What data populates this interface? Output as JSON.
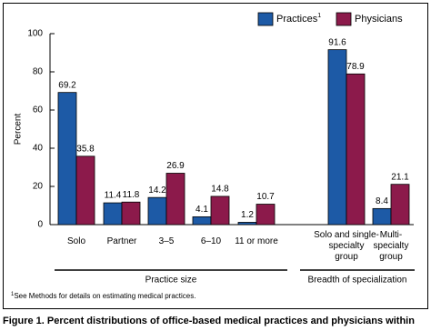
{
  "chart_data": {
    "type": "bar",
    "y_label": "Percent",
    "categories": [
      [
        "Solo"
      ],
      [
        "Partner"
      ],
      [
        "3–5"
      ],
      [
        "6–10"
      ],
      [
        "11 or more"
      ],
      [
        "Solo and single-",
        "specialty",
        "group"
      ],
      [
        "Multi-",
        "specialty",
        "group"
      ]
    ],
    "series": [
      {
        "name": "Practices",
        "legend_superscript": "1",
        "color": "#1d5aa6",
        "values": [
          69.2,
          11.4,
          14.2,
          4.1,
          1.2,
          91.6,
          8.4
        ]
      },
      {
        "name": "Physicians",
        "color": "#8c1a4b",
        "values": [
          35.8,
          11.8,
          26.9,
          14.8,
          10.7,
          78.9,
          21.1
        ]
      }
    ],
    "ylim": [
      0,
      100
    ],
    "yticks": [
      0,
      20,
      40,
      60,
      80,
      100
    ],
    "grid": false,
    "groups": [
      "Practice size",
      "Breadth of specialization"
    ],
    "footnote": {
      "marker": "1",
      "text": "See Methods for details on estimating medical practices."
    },
    "caption": "Figure 1. Percent distributions of office-based medical practices and physicians within"
  }
}
